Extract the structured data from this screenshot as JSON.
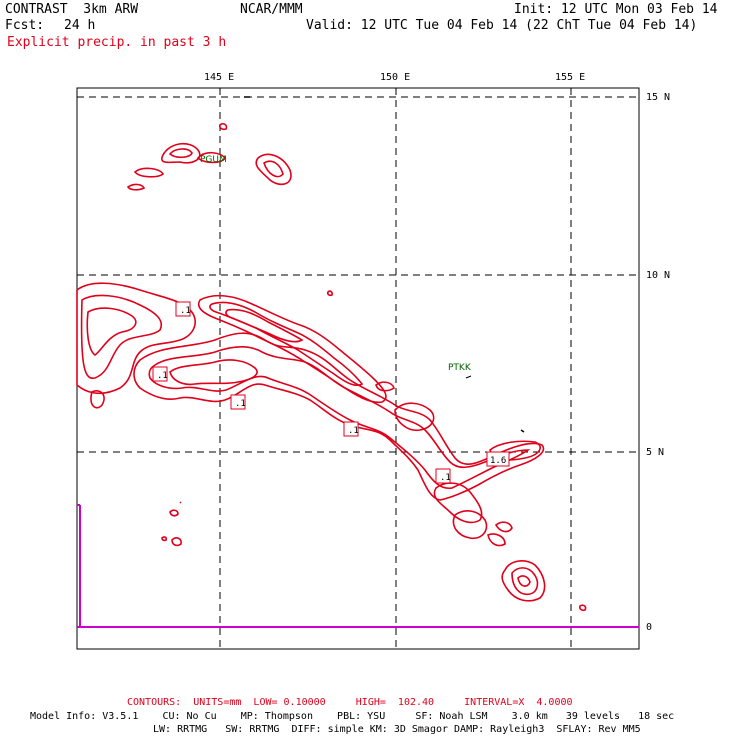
{
  "header": {
    "model": "CONTRAST  3km ARW",
    "org": "NCAR/MMM",
    "init": "Init: 12 UTC Mon 03 Feb 14",
    "fcst_label": "Fcst:",
    "fcst_value": "24 h",
    "valid": "Valid: 12 UTC Tue 04 Feb 14 (22 ChT Tue 04 Feb 14)",
    "field": "Explicit precip. in past 3 h"
  },
  "map": {
    "lon_labels": [
      "145 E",
      "150 E",
      "155 E"
    ],
    "lat_labels": [
      "15 N",
      "10 N",
      "5 N",
      "0"
    ],
    "stations": [
      "PGUM",
      "PTKK"
    ],
    "contour_labels": [
      ".1",
      ".1",
      ".1",
      ".1",
      ".1",
      "1.6"
    ],
    "colors": {
      "contour": "#e0001b",
      "grid": "#000000",
      "axis_line": "#cc00cc",
      "station": "#006400"
    }
  },
  "footer": {
    "contours": "CONTOURS:  UNITS=mm  LOW= 0.10000     HIGH=  102.40     INTERVAL=X  4.0000",
    "model_info_1": "Model Info: V3.5.1    CU: No Cu    MP: Thompson    PBL: YSU     SF: Noah LSM    3.0 km   39 levels   18 sec",
    "model_info_2": "LW: RRTMG   SW: RRTMG  DIFF: simple KM: 3D Smagor DAMP: Rayleigh3  SFLAY: Rev MM5"
  }
}
